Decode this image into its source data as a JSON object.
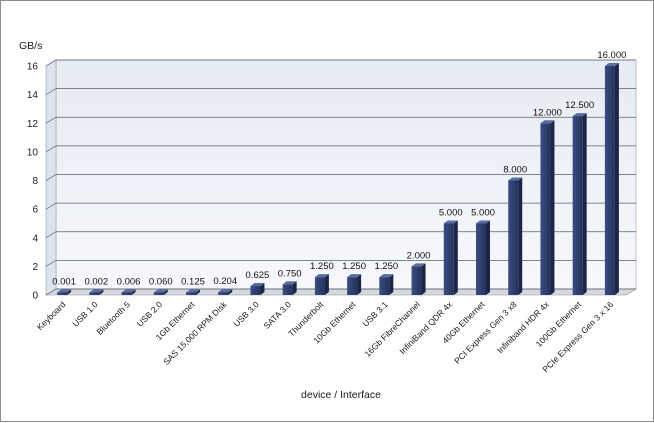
{
  "chart_data": {
    "type": "bar",
    "title": "",
    "xlabel": "device / Interface",
    "ylabel": "GB/s",
    "ylim": [
      0,
      16
    ],
    "yticks": [
      "0",
      "2",
      "4",
      "6",
      "8",
      "10",
      "12",
      "14",
      "16"
    ],
    "grid": true,
    "legend": "none",
    "categories": [
      "Keyboard",
      "USB 1.0",
      "Bluetooth 5",
      "USB 2.0",
      "1Gb Ethernet",
      "SAS 15,000 RPM Disk",
      "USB 3.0",
      "SATA 3.0",
      "Thunderbolt",
      "10Gb Ethernet",
      "USB 3.1",
      "16Gb FibreChannel",
      "InfiniBand QDR 4x",
      "40Gb Ethernet",
      "PCI Express Gen 3 x8",
      "Infiniband HDR 4x",
      "100Gb Ethernet",
      "PCIe Express Gen 3 x 16"
    ],
    "values": [
      0.001,
      0.002,
      0.006,
      0.06,
      0.125,
      0.204,
      0.625,
      0.75,
      1.25,
      1.25,
      1.25,
      2.0,
      5.0,
      5.0,
      8.0,
      12.0,
      12.5,
      16.0
    ],
    "data_labels": [
      "0.001",
      "0.002",
      "0.006",
      "0.060",
      "0.125",
      "0.204",
      "0.625",
      "0.750",
      "1.250",
      "1.250",
      "1.250",
      "2.000",
      "5.000",
      "5.000",
      "8.000",
      "12.000",
      "12.500",
      "16.000"
    ],
    "bar_color": "#2e3f6e"
  }
}
